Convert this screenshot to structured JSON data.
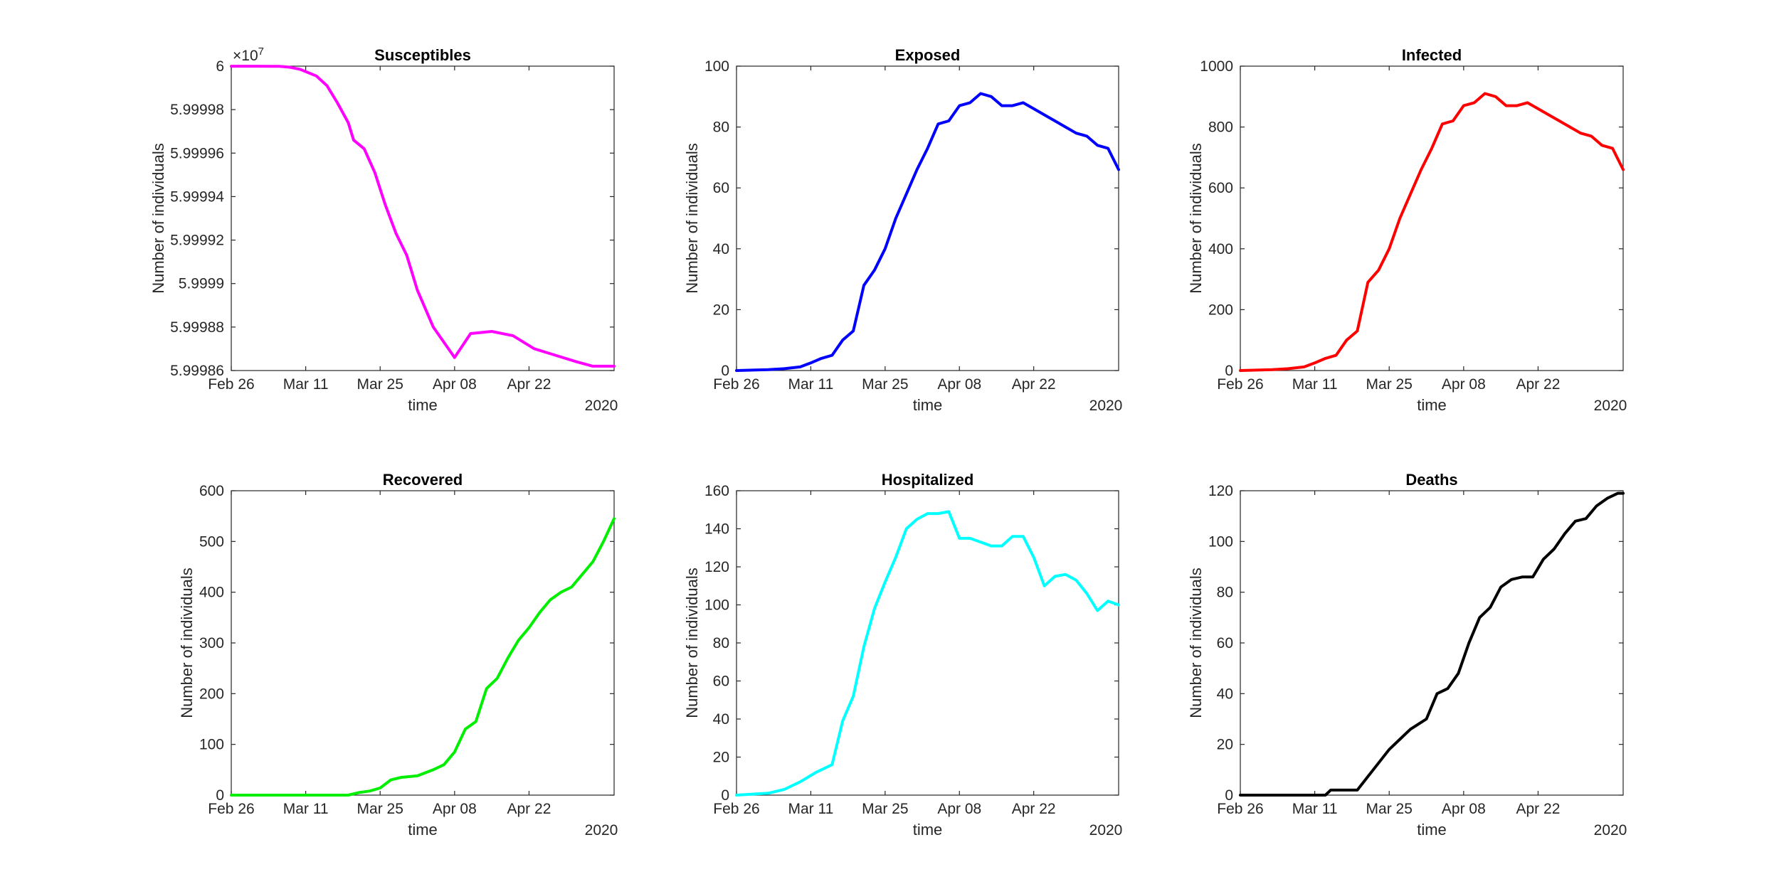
{
  "chart_data": [
    {
      "type": "line",
      "title": "Susceptibles",
      "xlabel": "time",
      "ylabel": "Number of individuals",
      "color": "#ff00ff",
      "x_range": [
        "2020-02-26",
        "2020-05-08"
      ],
      "x_ticks": [
        "Feb 26",
        "Mar 11",
        "Mar 25",
        "Apr 08",
        "Apr 22"
      ],
      "x_year": "2020",
      "y_exponent": "×10",
      "y_exponent_power": "7",
      "ylim": [
        5.99986,
        6.0
      ],
      "y_ticks": [
        5.99986,
        5.99988,
        5.9999,
        5.99992,
        5.99994,
        5.99996,
        5.99998,
        6.0
      ],
      "y_tick_labels": [
        "5.99986",
        "5.99988",
        "5.9999",
        "5.99992",
        "5.99994",
        "5.99996",
        "5.99998",
        "6"
      ],
      "series": [
        {
          "x": [
            "2020-02-26",
            "2020-03-02",
            "2020-03-06",
            "2020-03-08",
            "2020-03-10",
            "2020-03-13",
            "2020-03-15",
            "2020-03-17",
            "2020-03-19",
            "2020-03-20",
            "2020-03-22",
            "2020-03-24",
            "2020-03-26",
            "2020-03-28",
            "2020-03-30",
            "2020-04-01",
            "2020-04-04",
            "2020-04-08",
            "2020-04-11",
            "2020-04-15",
            "2020-04-19",
            "2020-04-23",
            "2020-04-27",
            "2020-05-01",
            "2020-05-04",
            "2020-05-08"
          ],
          "values": [
            5.99999996,
            5.99999996,
            5.9999999,
            5.9999995,
            5.9999985,
            5.9999955,
            5.999991,
            5.999983,
            5.999974,
            5.999966,
            5.999962,
            5.999951,
            5.999936,
            5.999923,
            5.999913,
            5.999897,
            5.99988,
            5.999866,
            5.999877,
            5.999878,
            5.999876,
            5.99987,
            5.999867,
            5.999864,
            5.999862,
            5.999862
          ]
        }
      ]
    },
    {
      "type": "line",
      "title": "Exposed",
      "xlabel": "time",
      "ylabel": "Number of individuals",
      "color": "#0000ff",
      "x_range": [
        "2020-02-26",
        "2020-05-08"
      ],
      "x_ticks": [
        "Feb 26",
        "Mar 11",
        "Mar 25",
        "Apr 08",
        "Apr 22"
      ],
      "x_year": "2020",
      "ylim": [
        0,
        100
      ],
      "y_ticks": [
        0,
        20,
        40,
        60,
        80,
        100
      ],
      "series": [
        {
          "x": [
            "2020-02-26",
            "2020-03-03",
            "2020-03-06",
            "2020-03-09",
            "2020-03-11",
            "2020-03-13",
            "2020-03-15",
            "2020-03-17",
            "2020-03-19",
            "2020-03-21",
            "2020-03-23",
            "2020-03-25",
            "2020-03-27",
            "2020-03-29",
            "2020-03-31",
            "2020-04-02",
            "2020-04-04",
            "2020-04-06",
            "2020-04-08",
            "2020-04-10",
            "2020-04-12",
            "2020-04-14",
            "2020-04-16",
            "2020-04-18",
            "2020-04-20",
            "2020-04-22",
            "2020-04-24",
            "2020-04-26",
            "2020-04-28",
            "2020-04-30",
            "2020-05-02",
            "2020-05-04",
            "2020-05-06",
            "2020-05-08"
          ],
          "values": [
            0,
            0.3,
            0.6,
            1.2,
            2.5,
            4,
            5,
            10,
            13,
            28,
            33,
            40,
            50,
            58,
            66,
            73,
            81,
            82,
            87,
            88,
            91,
            90,
            87,
            87,
            88,
            86,
            84,
            82,
            80,
            78,
            77,
            74,
            73,
            66
          ]
        }
      ]
    },
    {
      "type": "line",
      "title": "Infected",
      "xlabel": "time",
      "ylabel": "Number of individuals",
      "color": "#ff0000",
      "x_range": [
        "2020-02-26",
        "2020-05-08"
      ],
      "x_ticks": [
        "Feb 26",
        "Mar 11",
        "Mar 25",
        "Apr 08",
        "Apr 22"
      ],
      "x_year": "2020",
      "ylim": [
        0,
        1000
      ],
      "y_ticks": [
        0,
        200,
        400,
        600,
        800,
        1000
      ],
      "series": [
        {
          "x": [
            "2020-02-26",
            "2020-03-03",
            "2020-03-06",
            "2020-03-09",
            "2020-03-11",
            "2020-03-13",
            "2020-03-15",
            "2020-03-17",
            "2020-03-19",
            "2020-03-21",
            "2020-03-23",
            "2020-03-25",
            "2020-03-27",
            "2020-03-29",
            "2020-03-31",
            "2020-04-02",
            "2020-04-04",
            "2020-04-06",
            "2020-04-08",
            "2020-04-10",
            "2020-04-12",
            "2020-04-14",
            "2020-04-16",
            "2020-04-18",
            "2020-04-20",
            "2020-04-22",
            "2020-04-24",
            "2020-04-26",
            "2020-04-28",
            "2020-04-30",
            "2020-05-02",
            "2020-05-04",
            "2020-05-06",
            "2020-05-08"
          ],
          "values": [
            0,
            3,
            6,
            12,
            25,
            40,
            50,
            100,
            130,
            290,
            330,
            400,
            500,
            580,
            660,
            730,
            810,
            820,
            870,
            880,
            910,
            900,
            870,
            870,
            880,
            860,
            840,
            820,
            800,
            780,
            770,
            740,
            730,
            660
          ]
        }
      ]
    },
    {
      "type": "line",
      "title": "Recovered",
      "xlabel": "time",
      "ylabel": "Number of individuals",
      "color": "#00ee00",
      "x_range": [
        "2020-02-26",
        "2020-05-08"
      ],
      "x_ticks": [
        "Feb 26",
        "Mar 11",
        "Mar 25",
        "Apr 08",
        "Apr 22"
      ],
      "x_year": "2020",
      "ylim": [
        0,
        600
      ],
      "y_ticks": [
        0,
        100,
        200,
        300,
        400,
        500,
        600
      ],
      "series": [
        {
          "x": [
            "2020-02-26",
            "2020-03-19",
            "2020-03-21",
            "2020-03-23",
            "2020-03-25",
            "2020-03-27",
            "2020-03-29",
            "2020-04-01",
            "2020-04-04",
            "2020-04-06",
            "2020-04-08",
            "2020-04-10",
            "2020-04-12",
            "2020-04-14",
            "2020-04-16",
            "2020-04-18",
            "2020-04-20",
            "2020-04-22",
            "2020-04-24",
            "2020-04-26",
            "2020-04-28",
            "2020-04-30",
            "2020-05-02",
            "2020-05-04",
            "2020-05-06",
            "2020-05-08"
          ],
          "values": [
            0,
            0,
            5,
            8,
            14,
            30,
            35,
            38,
            50,
            60,
            85,
            130,
            145,
            210,
            230,
            270,
            305,
            330,
            360,
            385,
            400,
            410,
            435,
            460,
            500,
            545
          ]
        }
      ]
    },
    {
      "type": "line",
      "title": "Hospitalized",
      "xlabel": "time",
      "ylabel": "Number of individuals",
      "color": "#00ffff",
      "x_range": [
        "2020-02-26",
        "2020-05-08"
      ],
      "x_ticks": [
        "Feb 26",
        "Mar 11",
        "Mar 25",
        "Apr 08",
        "Apr 22"
      ],
      "x_year": "2020",
      "ylim": [
        0,
        160
      ],
      "y_ticks": [
        0,
        20,
        40,
        60,
        80,
        100,
        120,
        140,
        160
      ],
      "series": [
        {
          "x": [
            "2020-02-26",
            "2020-03-03",
            "2020-03-06",
            "2020-03-09",
            "2020-03-12",
            "2020-03-15",
            "2020-03-17",
            "2020-03-19",
            "2020-03-21",
            "2020-03-23",
            "2020-03-25",
            "2020-03-27",
            "2020-03-29",
            "2020-03-31",
            "2020-04-02",
            "2020-04-04",
            "2020-04-06",
            "2020-04-08",
            "2020-04-10",
            "2020-04-12",
            "2020-04-14",
            "2020-04-16",
            "2020-04-18",
            "2020-04-20",
            "2020-04-22",
            "2020-04-24",
            "2020-04-26",
            "2020-04-28",
            "2020-04-30",
            "2020-05-02",
            "2020-05-04",
            "2020-05-06",
            "2020-05-08"
          ],
          "values": [
            0,
            1,
            3,
            7,
            12,
            16,
            39,
            52,
            78,
            98,
            112,
            125,
            140,
            145,
            148,
            148,
            149,
            135,
            135,
            133,
            131,
            131,
            136,
            136,
            125,
            110,
            115,
            116,
            113,
            106,
            97,
            102,
            100
          ]
        }
      ]
    },
    {
      "type": "line",
      "title": "Deaths",
      "xlabel": "time",
      "ylabel": "Number of individuals",
      "color": "#000000",
      "x_range": [
        "2020-02-26",
        "2020-05-08"
      ],
      "x_ticks": [
        "Feb 26",
        "Mar 11",
        "Mar 25",
        "Apr 08",
        "Apr 22"
      ],
      "x_year": "2020",
      "ylim": [
        0,
        120
      ],
      "y_ticks": [
        0,
        20,
        40,
        60,
        80,
        100,
        120
      ],
      "series": [
        {
          "x": [
            "2020-02-26",
            "2020-03-13",
            "2020-03-14",
            "2020-03-19",
            "2020-03-22",
            "2020-03-25",
            "2020-03-27",
            "2020-03-29",
            "2020-04-01",
            "2020-04-03",
            "2020-04-05",
            "2020-04-07",
            "2020-04-09",
            "2020-04-11",
            "2020-04-13",
            "2020-04-15",
            "2020-04-17",
            "2020-04-19",
            "2020-04-21",
            "2020-04-23",
            "2020-04-25",
            "2020-04-27",
            "2020-04-29",
            "2020-05-01",
            "2020-05-03",
            "2020-05-05",
            "2020-05-07",
            "2020-05-08"
          ],
          "values": [
            0,
            0,
            2,
            2,
            10,
            18,
            22,
            26,
            30,
            40,
            42,
            48,
            60,
            70,
            74,
            82,
            85,
            86,
            86,
            93,
            97,
            103,
            108,
            109,
            114,
            117,
            119,
            119
          ]
        }
      ]
    }
  ]
}
